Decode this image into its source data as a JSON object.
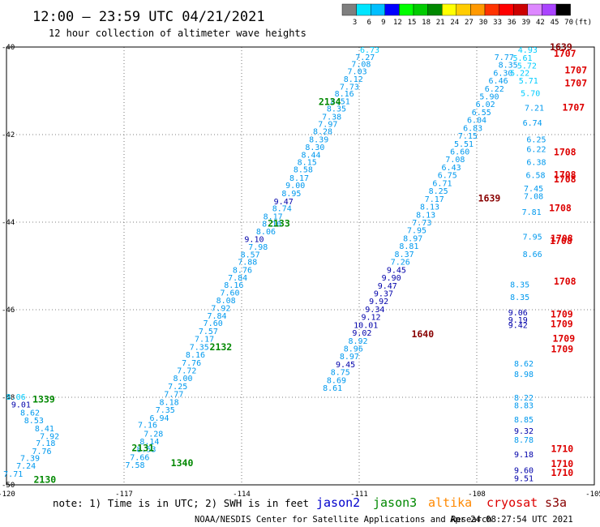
{
  "title": "12:00 – 23:59 UTC 04/21/2021",
  "subtitle": "12 hour collection of altimeter wave heights",
  "note": "note: 1) Time is in UTC; 2) SWH is in feet",
  "credit": "NOAA/NESDIS Center for Satellite Applications and Research",
  "timestamp": "Apr 24 08:27:54 UTC 2021",
  "satellites": [
    {
      "name": "jason2",
      "color": "#0000cc"
    },
    {
      "name": "jason3",
      "color": "#008800"
    },
    {
      "name": "altika",
      "color": "#ff8800"
    },
    {
      "name": "cryosat",
      "color": "#dd0000"
    },
    {
      "name": "s3a",
      "color": "#880000"
    }
  ],
  "colorbar": {
    "labels": [
      "3",
      "6",
      "9",
      "12",
      "15",
      "18",
      "21",
      "24",
      "27",
      "30",
      "33",
      "36",
      "39",
      "42",
      "45",
      "70",
      "(ft)"
    ],
    "colors": [
      "#7f7f7f",
      "#00e5ff",
      "#00bfff",
      "#0000ff",
      "#00ff00",
      "#00cc00",
      "#008800",
      "#ffff00",
      "#ffcc00",
      "#ff9900",
      "#ff3300",
      "#ff0000",
      "#cc0000",
      "#dd88ff",
      "#aa44ff",
      "#000000"
    ]
  },
  "chart_data": {
    "type": "scatter",
    "title": "12:00 – 23:59 UTC 04/21/2021",
    "subtitle": "12 hour collection of altimeter wave heights",
    "xlim": [
      -120,
      -105
    ],
    "ylim": [
      -50,
      -40
    ],
    "xticks": [
      "-120",
      "-117",
      "-114",
      "-111",
      "-108",
      "-105"
    ],
    "yticks": [
      "-40",
      "-42",
      "-44",
      "-46",
      "-48",
      "-50"
    ],
    "grid": true,
    "point_colors": {
      "c1": "#00ccff",
      "c2": "#0099ee",
      "c3": "#0000aa"
    },
    "points": [
      {
        "x": -110.73,
        "y": -40.06,
        "v": "6.73",
        "c": "c1"
      },
      {
        "x": -110.85,
        "y": -40.22,
        "v": "7.27",
        "c": "c2"
      },
      {
        "x": -110.95,
        "y": -40.38,
        "v": "7.08",
        "c": "c2"
      },
      {
        "x": -111.05,
        "y": -40.55,
        "v": "7.03",
        "c": "c2"
      },
      {
        "x": -111.15,
        "y": -40.72,
        "v": "8.12",
        "c": "c2"
      },
      {
        "x": -111.25,
        "y": -40.9,
        "v": "7.73",
        "c": "c2"
      },
      {
        "x": -111.38,
        "y": -41.06,
        "v": "8.16",
        "c": "c2"
      },
      {
        "x": -111.48,
        "y": -41.23,
        "v": "8.51",
        "c": "c2"
      },
      {
        "x": -111.58,
        "y": -41.4,
        "v": "8.35",
        "c": "c2"
      },
      {
        "x": -111.7,
        "y": -41.58,
        "v": "7.38",
        "c": "c2"
      },
      {
        "x": -111.8,
        "y": -41.75,
        "v": "7.97",
        "c": "c2"
      },
      {
        "x": -111.93,
        "y": -41.92,
        "v": "8.28",
        "c": "c2"
      },
      {
        "x": -112.03,
        "y": -42.1,
        "v": "8.39",
        "c": "c2"
      },
      {
        "x": -112.13,
        "y": -42.28,
        "v": "8.30",
        "c": "c2"
      },
      {
        "x": -112.23,
        "y": -42.45,
        "v": "8.44",
        "c": "c2"
      },
      {
        "x": -112.33,
        "y": -42.62,
        "v": "8.15",
        "c": "c2"
      },
      {
        "x": -112.43,
        "y": -42.79,
        "v": "8.58",
        "c": "c2"
      },
      {
        "x": -112.53,
        "y": -42.98,
        "v": "8.17",
        "c": "c2"
      },
      {
        "x": -112.63,
        "y": -43.15,
        "v": "9.00",
        "c": "c2"
      },
      {
        "x": -112.73,
        "y": -43.33,
        "v": "8.95",
        "c": "c2"
      },
      {
        "x": -112.93,
        "y": -43.52,
        "v": "9.47",
        "c": "c3"
      },
      {
        "x": -112.97,
        "y": -43.68,
        "v": "8.74",
        "c": "c2"
      },
      {
        "x": -113.2,
        "y": -43.86,
        "v": "8.17",
        "c": "c2"
      },
      {
        "x": -113.23,
        "y": -44.03,
        "v": "8.10",
        "c": "c2"
      },
      {
        "x": -113.38,
        "y": -44.2,
        "v": "8.06",
        "c": "c2"
      },
      {
        "x": -113.68,
        "y": -44.38,
        "v": "9.10",
        "c": "c3"
      },
      {
        "x": -113.58,
        "y": -44.56,
        "v": "7.98",
        "c": "c2"
      },
      {
        "x": -113.78,
        "y": -44.73,
        "v": "8.57",
        "c": "c2"
      },
      {
        "x": -113.85,
        "y": -44.9,
        "v": "7.88",
        "c": "c2"
      },
      {
        "x": -113.98,
        "y": -45.08,
        "v": "8.76",
        "c": "c2"
      },
      {
        "x": -114.1,
        "y": -45.26,
        "v": "7.84",
        "c": "c2"
      },
      {
        "x": -114.2,
        "y": -45.43,
        "v": "8.16",
        "c": "c2"
      },
      {
        "x": -114.3,
        "y": -45.6,
        "v": "7.60",
        "c": "c2"
      },
      {
        "x": -114.4,
        "y": -45.78,
        "v": "8.08",
        "c": "c2"
      },
      {
        "x": -114.53,
        "y": -45.95,
        "v": "7.92",
        "c": "c2"
      },
      {
        "x": -114.63,
        "y": -46.13,
        "v": "7.84",
        "c": "c2"
      },
      {
        "x": -114.73,
        "y": -46.3,
        "v": "7.60",
        "c": "c2"
      },
      {
        "x": -114.85,
        "y": -46.48,
        "v": "7.57",
        "c": "c2"
      },
      {
        "x": -114.95,
        "y": -46.66,
        "v": "7.17",
        "c": "c2"
      },
      {
        "x": -115.08,
        "y": -46.84,
        "v": "7.35",
        "c": "c2"
      },
      {
        "x": -115.18,
        "y": -47.02,
        "v": "8.16",
        "c": "c2"
      },
      {
        "x": -115.28,
        "y": -47.2,
        "v": "7.76",
        "c": "c2"
      },
      {
        "x": -115.4,
        "y": -47.38,
        "v": "7.72",
        "c": "c2"
      },
      {
        "x": -115.5,
        "y": -47.56,
        "v": "8.00",
        "c": "c2"
      },
      {
        "x": -115.63,
        "y": -47.74,
        "v": "7.25",
        "c": "c2"
      },
      {
        "x": -115.73,
        "y": -47.92,
        "v": "7.77",
        "c": "c2"
      },
      {
        "x": -115.85,
        "y": -48.1,
        "v": "8.18",
        "c": "c2"
      },
      {
        "x": -115.95,
        "y": -48.28,
        "v": "7.35",
        "c": "c2"
      },
      {
        "x": -116.1,
        "y": -48.46,
        "v": "6.94",
        "c": "c2"
      },
      {
        "x": -116.4,
        "y": -48.62,
        "v": "7.16",
        "c": "c2"
      },
      {
        "x": -116.25,
        "y": -48.82,
        "v": "7.28",
        "c": "c2"
      },
      {
        "x": -116.35,
        "y": -49.0,
        "v": "8.14",
        "c": "c2"
      },
      {
        "x": -116.43,
        "y": -49.18,
        "v": "8.53",
        "c": "c2"
      },
      {
        "x": -116.6,
        "y": -49.36,
        "v": "7.66",
        "c": "c2"
      },
      {
        "x": -116.72,
        "y": -49.54,
        "v": "7.58",
        "c": "c2"
      },
      {
        "x": -119.76,
        "y": -47.98,
        "v": "8.06",
        "c": "c1"
      },
      {
        "x": -119.63,
        "y": -48.16,
        "v": "9.01",
        "c": "c3"
      },
      {
        "x": -119.4,
        "y": -48.34,
        "v": "8.62",
        "c": "c2"
      },
      {
        "x": -119.3,
        "y": -48.52,
        "v": "8.53",
        "c": "c2"
      },
      {
        "x": -119.03,
        "y": -48.7,
        "v": "8.41",
        "c": "c2"
      },
      {
        "x": -118.9,
        "y": -48.88,
        "v": "7.92",
        "c": "c2"
      },
      {
        "x": -119.0,
        "y": -49.04,
        "v": "7.18",
        "c": "c2"
      },
      {
        "x": -119.1,
        "y": -49.22,
        "v": "7.76",
        "c": "c2"
      },
      {
        "x": -119.4,
        "y": -49.38,
        "v": "7.39",
        "c": "c2"
      },
      {
        "x": -119.5,
        "y": -49.56,
        "v": "7.24",
        "c": "c2"
      },
      {
        "x": -119.83,
        "y": -49.74,
        "v": "7.71",
        "c": "c2"
      },
      {
        "x": -107.3,
        "y": -40.22,
        "v": "7.77",
        "c": "c2"
      },
      {
        "x": -107.2,
        "y": -40.4,
        "v": "8.35",
        "c": "c2"
      },
      {
        "x": -107.33,
        "y": -40.58,
        "v": "6.30",
        "c": "c2"
      },
      {
        "x": -107.45,
        "y": -40.76,
        "v": "6.46",
        "c": "c2"
      },
      {
        "x": -107.55,
        "y": -40.94,
        "v": "6.22",
        "c": "c2"
      },
      {
        "x": -107.68,
        "y": -41.12,
        "v": "5.90",
        "c": "c2"
      },
      {
        "x": -107.78,
        "y": -41.3,
        "v": "6.02",
        "c": "c2"
      },
      {
        "x": -107.88,
        "y": -41.48,
        "v": "6.55",
        "c": "c2"
      },
      {
        "x": -108.0,
        "y": -41.66,
        "v": "6.04",
        "c": "c2"
      },
      {
        "x": -108.1,
        "y": -41.84,
        "v": "6.83",
        "c": "c2"
      },
      {
        "x": -108.23,
        "y": -42.02,
        "v": "7.15",
        "c": "c2"
      },
      {
        "x": -108.33,
        "y": -42.2,
        "v": "5.51",
        "c": "c2"
      },
      {
        "x": -108.43,
        "y": -42.38,
        "v": "6.60",
        "c": "c2"
      },
      {
        "x": -108.55,
        "y": -42.56,
        "v": "7.08",
        "c": "c2"
      },
      {
        "x": -108.65,
        "y": -42.74,
        "v": "6.43",
        "c": "c2"
      },
      {
        "x": -108.75,
        "y": -42.92,
        "v": "6.75",
        "c": "c2"
      },
      {
        "x": -108.88,
        "y": -43.1,
        "v": "6.71",
        "c": "c2"
      },
      {
        "x": -108.98,
        "y": -43.28,
        "v": "8.25",
        "c": "c2"
      },
      {
        "x": -109.08,
        "y": -43.46,
        "v": "7.17",
        "c": "c2"
      },
      {
        "x": -109.2,
        "y": -43.64,
        "v": "8.13",
        "c": "c2"
      },
      {
        "x": -109.3,
        "y": -43.82,
        "v": "8.13",
        "c": "c2"
      },
      {
        "x": -109.4,
        "y": -44.0,
        "v": "7.73",
        "c": "c2"
      },
      {
        "x": -109.53,
        "y": -44.18,
        "v": "7.95",
        "c": "c2"
      },
      {
        "x": -109.63,
        "y": -44.36,
        "v": "8.97",
        "c": "c2"
      },
      {
        "x": -109.73,
        "y": -44.54,
        "v": "8.81",
        "c": "c2"
      },
      {
        "x": -109.85,
        "y": -44.72,
        "v": "8.37",
        "c": "c2"
      },
      {
        "x": -109.95,
        "y": -44.9,
        "v": "7.26",
        "c": "c2"
      },
      {
        "x": -110.05,
        "y": -45.08,
        "v": "9.45",
        "c": "c3"
      },
      {
        "x": -110.18,
        "y": -45.26,
        "v": "9.90",
        "c": "c3"
      },
      {
        "x": -110.28,
        "y": -45.44,
        "v": "9.47",
        "c": "c3"
      },
      {
        "x": -110.38,
        "y": -45.62,
        "v": "9.37",
        "c": "c3"
      },
      {
        "x": -110.5,
        "y": -45.8,
        "v": "9.92",
        "c": "c3"
      },
      {
        "x": -110.6,
        "y": -45.98,
        "v": "9.34",
        "c": "c3"
      },
      {
        "x": -110.7,
        "y": -46.16,
        "v": "9.12",
        "c": "c3"
      },
      {
        "x": -110.83,
        "y": -46.34,
        "v": "10.01",
        "c": "c3"
      },
      {
        "x": -110.93,
        "y": -46.52,
        "v": "9.02",
        "c": "c3"
      },
      {
        "x": -111.03,
        "y": -46.7,
        "v": "8.92",
        "c": "c2"
      },
      {
        "x": -111.15,
        "y": -46.88,
        "v": "8.96",
        "c": "c2"
      },
      {
        "x": -111.25,
        "y": -47.06,
        "v": "8.97",
        "c": "c2"
      },
      {
        "x": -111.35,
        "y": -47.24,
        "v": "9.45",
        "c": "c3"
      },
      {
        "x": -111.48,
        "y": -47.42,
        "v": "8.75",
        "c": "c2"
      },
      {
        "x": -111.58,
        "y": -47.6,
        "v": "8.69",
        "c": "c2"
      },
      {
        "x": -111.68,
        "y": -47.78,
        "v": "8.61",
        "c": "c2"
      },
      {
        "x": -106.7,
        "y": -40.06,
        "v": "4.93",
        "c": "c1"
      },
      {
        "x": -106.83,
        "y": -40.24,
        "v": "5.61",
        "c": "c1"
      },
      {
        "x": -106.72,
        "y": -40.42,
        "v": "5.72",
        "c": "c1"
      },
      {
        "x": -106.9,
        "y": -40.58,
        "v": "5.22",
        "c": "c1"
      },
      {
        "x": -106.68,
        "y": -40.76,
        "v": "5.71",
        "c": "c1"
      },
      {
        "x": -106.63,
        "y": -41.05,
        "v": "5.70",
        "c": "c1"
      },
      {
        "x": -106.53,
        "y": -41.38,
        "v": "7.21",
        "c": "c2"
      },
      {
        "x": -106.58,
        "y": -41.72,
        "v": "6.74",
        "c": "c2"
      },
      {
        "x": -106.48,
        "y": -42.1,
        "v": "6.25",
        "c": "c2"
      },
      {
        "x": -106.48,
        "y": -42.32,
        "v": "6.22",
        "c": "c2"
      },
      {
        "x": -106.48,
        "y": -42.62,
        "v": "6.38",
        "c": "c2"
      },
      {
        "x": -106.5,
        "y": -42.92,
        "v": "6.58",
        "c": "c2"
      },
      {
        "x": -106.55,
        "y": -43.22,
        "v": "7.45",
        "c": "c2"
      },
      {
        "x": -106.55,
        "y": -43.4,
        "v": "7.08",
        "c": "c2"
      },
      {
        "x": -106.6,
        "y": -43.76,
        "v": "7.81",
        "c": "c2"
      },
      {
        "x": -106.58,
        "y": -44.32,
        "v": "7.95",
        "c": "c2"
      },
      {
        "x": -106.58,
        "y": -44.72,
        "v": "8.66",
        "c": "c2"
      },
      {
        "x": -106.9,
        "y": -45.42,
        "v": "8.35",
        "c": "c2"
      },
      {
        "x": -106.9,
        "y": -45.7,
        "v": "8.35",
        "c": "c2"
      },
      {
        "x": -106.95,
        "y": -46.06,
        "v": "9.06",
        "c": "c3"
      },
      {
        "x": -106.95,
        "y": -46.22,
        "v": "9.19",
        "c": "c3"
      },
      {
        "x": -106.95,
        "y": -46.34,
        "v": "9.42",
        "c": "c3"
      },
      {
        "x": -106.8,
        "y": -47.22,
        "v": "8.62",
        "c": "c2"
      },
      {
        "x": -106.8,
        "y": -47.46,
        "v": "8.98",
        "c": "c2"
      },
      {
        "x": -106.8,
        "y": -48.0,
        "v": "8.22",
        "c": "c2"
      },
      {
        "x": -106.8,
        "y": -48.18,
        "v": "8.83",
        "c": "c2"
      },
      {
        "x": -106.8,
        "y": -48.5,
        "v": "8.85",
        "c": "c2"
      },
      {
        "x": -106.8,
        "y": -48.76,
        "v": "9.32",
        "c": "c3"
      },
      {
        "x": -106.8,
        "y": -48.96,
        "v": "8.78",
        "c": "c2"
      },
      {
        "x": -106.8,
        "y": -49.3,
        "v": "9.18",
        "c": "c3"
      },
      {
        "x": -106.8,
        "y": -49.66,
        "v": "9.60",
        "c": "c3"
      },
      {
        "x": -106.8,
        "y": -49.84,
        "v": "9.51",
        "c": "c3"
      }
    ],
    "labels": [
      {
        "x": -111.75,
        "y": -41.25,
        "v": "2134",
        "color": "#008800"
      },
      {
        "x": -113.05,
        "y": -44.03,
        "v": "2133",
        "color": "#008800"
      },
      {
        "x": -114.53,
        "y": -46.85,
        "v": "2132",
        "color": "#008800"
      },
      {
        "x": -116.52,
        "y": -49.16,
        "v": "2131",
        "color": "#008800"
      },
      {
        "x": -119.02,
        "y": -49.88,
        "v": "2130",
        "color": "#008800"
      },
      {
        "x": -119.05,
        "y": -48.05,
        "v": "1339",
        "color": "#008800"
      },
      {
        "x": -115.52,
        "y": -49.5,
        "v": "1340",
        "color": "#008800"
      },
      {
        "x": -105.85,
        "y": -40.0,
        "v": "1639",
        "color": "#880000"
      },
      {
        "x": -107.68,
        "y": -43.45,
        "v": "1639",
        "color": "#880000"
      },
      {
        "x": -109.38,
        "y": -46.56,
        "v": "1640",
        "color": "#880000"
      },
      {
        "x": -105.75,
        "y": -40.15,
        "v": "1707",
        "color": "#dd0000"
      },
      {
        "x": -105.47,
        "y": -40.53,
        "v": "1707",
        "color": "#dd0000"
      },
      {
        "x": -105.47,
        "y": -40.82,
        "v": "1707",
        "color": "#dd0000"
      },
      {
        "x": -105.53,
        "y": -41.38,
        "v": "1707",
        "color": "#dd0000"
      },
      {
        "x": -105.75,
        "y": -42.4,
        "v": "1708",
        "color": "#dd0000"
      },
      {
        "x": -105.75,
        "y": -42.92,
        "v": "1708",
        "color": "#dd0000"
      },
      {
        "x": -105.75,
        "y": -43.02,
        "v": "1708",
        "color": "#dd0000"
      },
      {
        "x": -105.87,
        "y": -43.68,
        "v": "1708",
        "color": "#dd0000"
      },
      {
        "x": -105.83,
        "y": -44.37,
        "v": "1708",
        "color": "#dd0000"
      },
      {
        "x": -105.85,
        "y": -44.43,
        "v": "1708",
        "color": "#dd0000"
      },
      {
        "x": -105.75,
        "y": -45.35,
        "v": "1708",
        "color": "#dd0000"
      },
      {
        "x": -105.83,
        "y": -46.1,
        "v": "1709",
        "color": "#dd0000"
      },
      {
        "x": -105.83,
        "y": -46.32,
        "v": "1709",
        "color": "#dd0000"
      },
      {
        "x": -105.78,
        "y": -46.66,
        "v": "1709",
        "color": "#dd0000"
      },
      {
        "x": -105.82,
        "y": -46.9,
        "v": "1709",
        "color": "#dd0000"
      },
      {
        "x": -105.82,
        "y": -49.18,
        "v": "1710",
        "color": "#dd0000"
      },
      {
        "x": -105.82,
        "y": -49.52,
        "v": "1710",
        "color": "#dd0000"
      },
      {
        "x": -105.82,
        "y": -49.72,
        "v": "1710",
        "color": "#dd0000"
      }
    ]
  }
}
